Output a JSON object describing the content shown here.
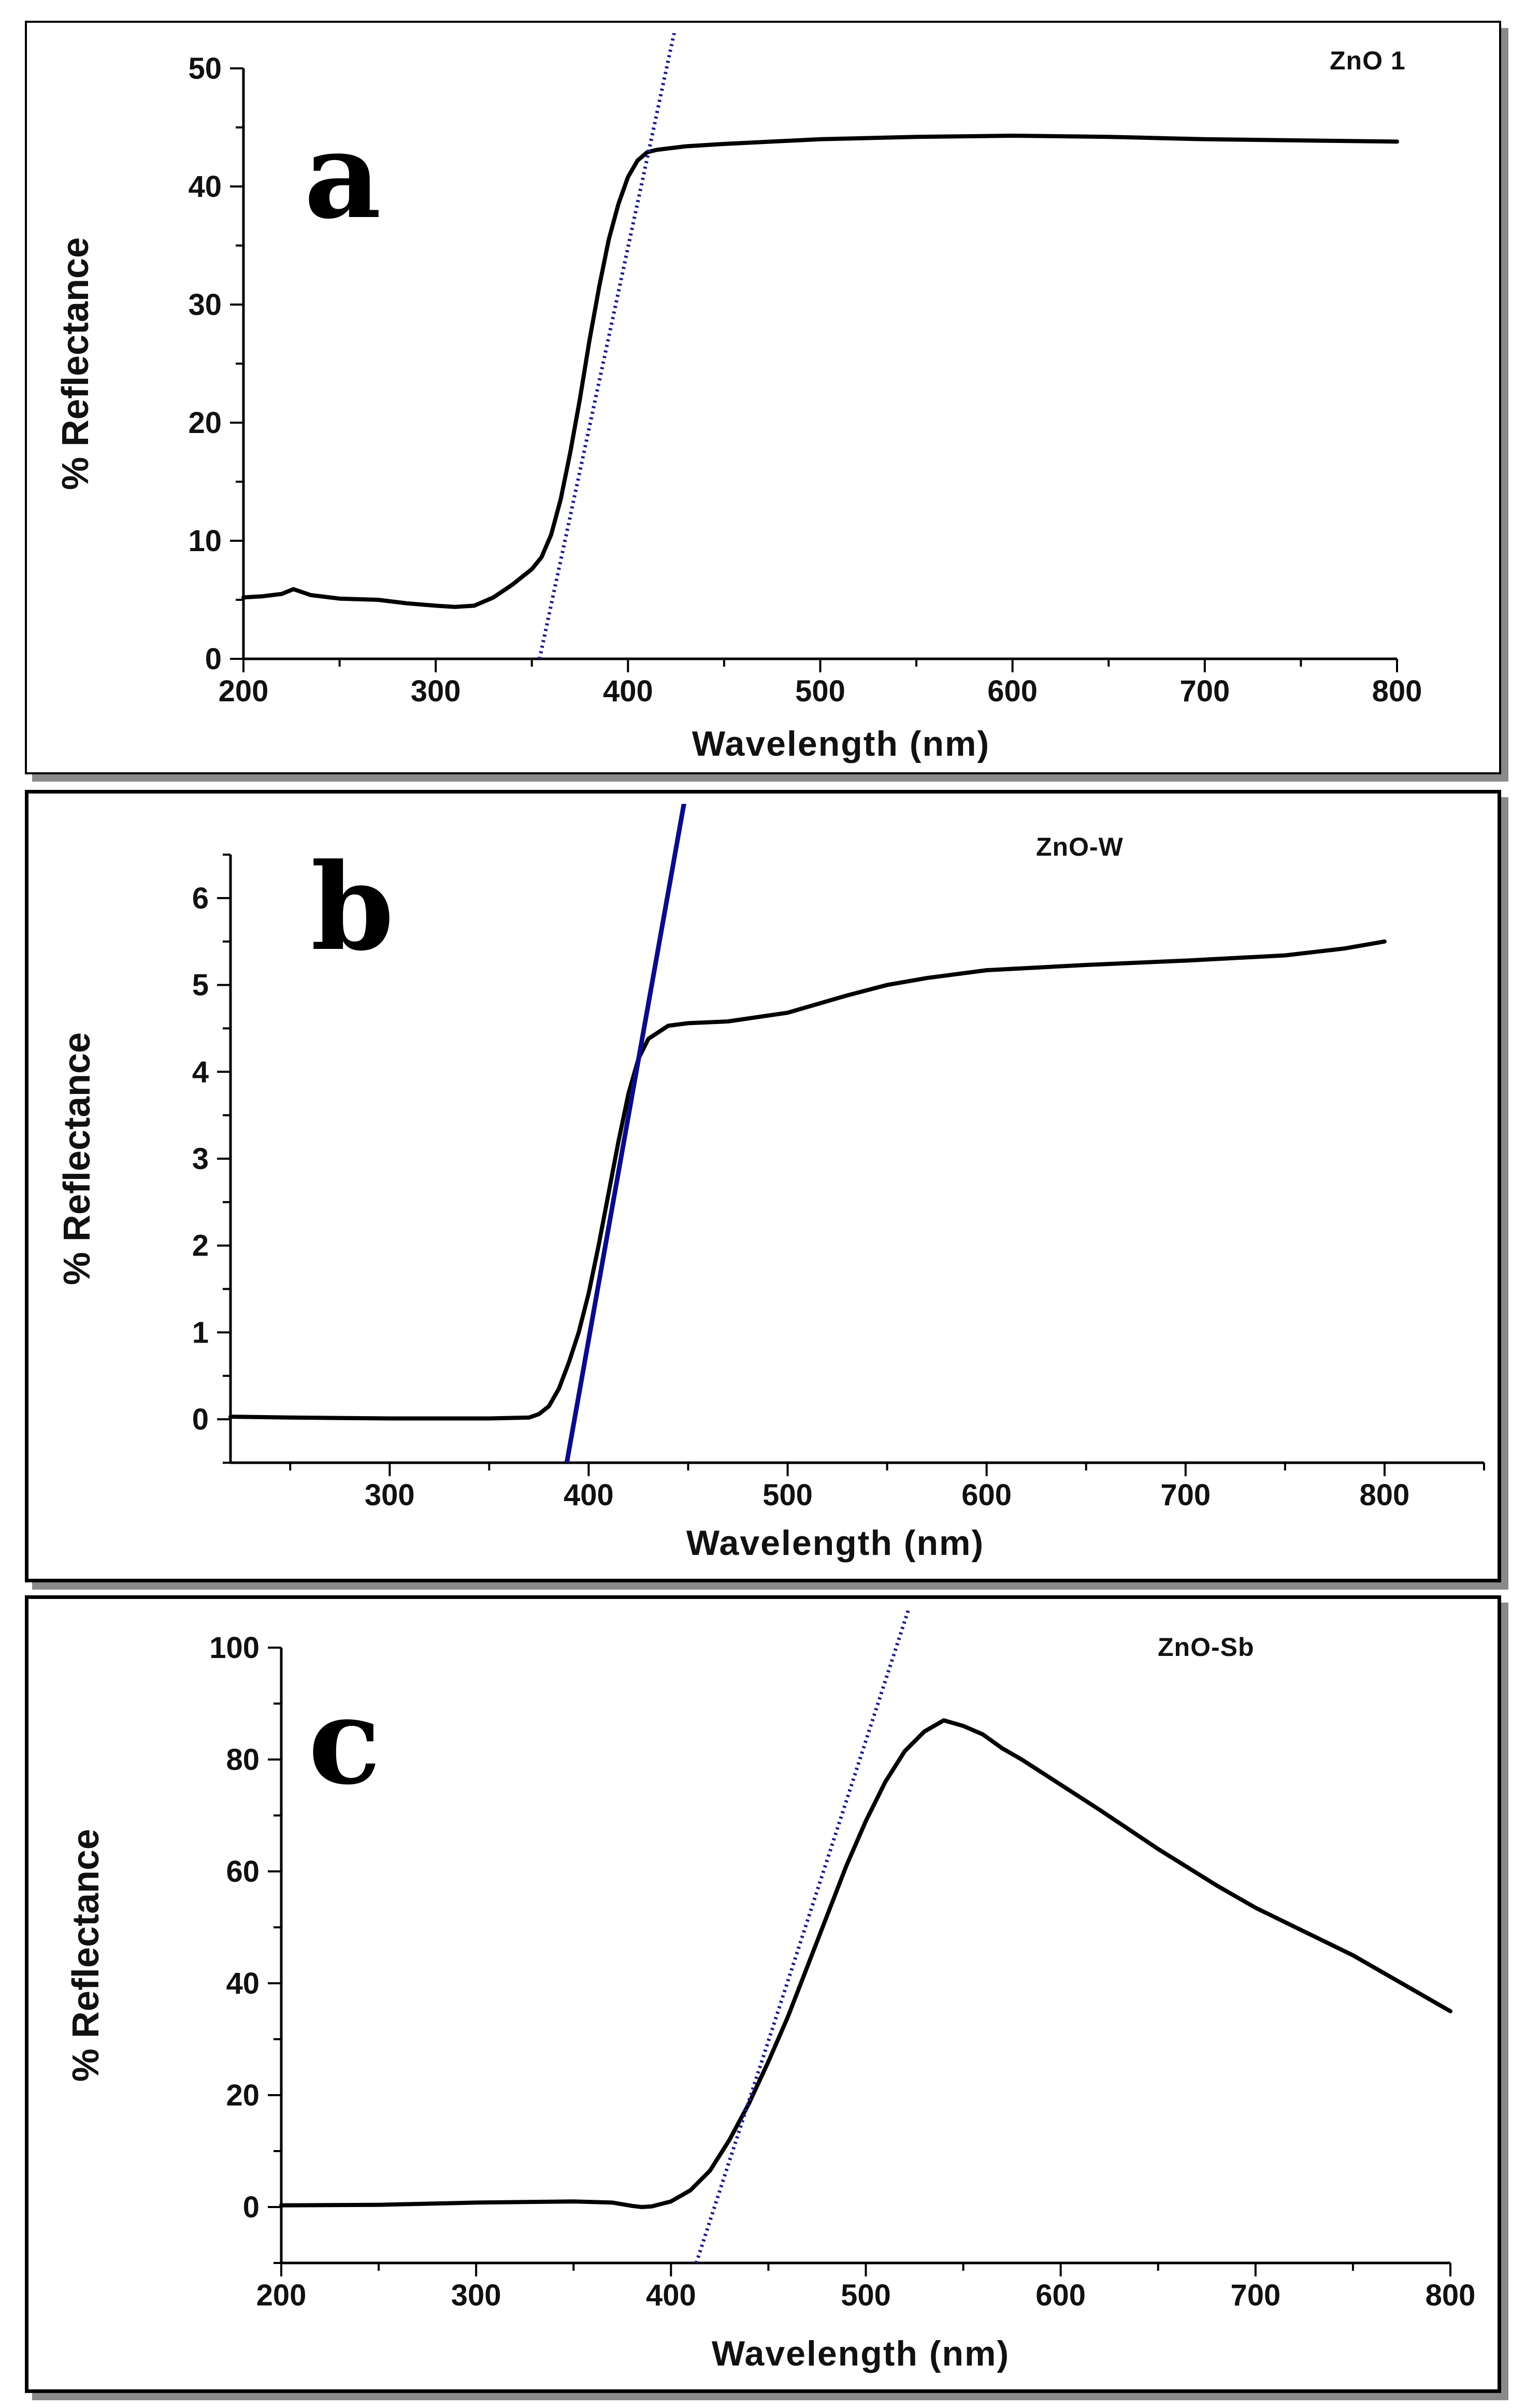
{
  "chart_data": [
    {
      "type": "line",
      "panel_letter": "a",
      "sample_label": "ZnO 1",
      "xlabel": "Wavelength (nm)",
      "ylabel": "% Reflectance",
      "xlim": [
        200,
        800
      ],
      "ylim": [
        0,
        50
      ],
      "x_ticks": [
        200,
        300,
        400,
        500,
        600,
        700,
        800
      ],
      "y_ticks": [
        0,
        10,
        20,
        30,
        40,
        50
      ],
      "colors": {
        "spectrum": "#000000",
        "tangent": "#1a1a8c"
      },
      "series": [
        {
          "name": "spectrum",
          "x": [
            200,
            210,
            220,
            226,
            235,
            250,
            270,
            285,
            300,
            310,
            320,
            330,
            340,
            350,
            355,
            360,
            365,
            370,
            375,
            380,
            385,
            390,
            395,
            400,
            405,
            410,
            415,
            420,
            430,
            450,
            500,
            550,
            600,
            650,
            700,
            750,
            800
          ],
          "y": [
            5.2,
            5.3,
            5.5,
            5.9,
            5.4,
            5.1,
            5.0,
            4.7,
            4.5,
            4.4,
            4.5,
            5.2,
            6.3,
            7.6,
            8.6,
            10.5,
            13.5,
            17.5,
            22.0,
            27.0,
            31.5,
            35.5,
            38.5,
            40.8,
            42.2,
            42.9,
            43.1,
            43.2,
            43.4,
            43.6,
            44.0,
            44.2,
            44.3,
            44.2,
            44.0,
            43.9,
            43.8
          ]
        }
      ],
      "tangent": {
        "style": "dotted",
        "x": [
          354,
          424
        ],
        "y": [
          0,
          53
        ]
      }
    },
    {
      "type": "line",
      "panel_letter": "b",
      "sample_label": "ZnO-W",
      "xlabel": "Wavelength (nm)",
      "ylabel": "% Reflectance",
      "xlim": [
        220,
        850
      ],
      "ylim": [
        -0.5,
        6.5
      ],
      "x_ticks": [
        300,
        400,
        500,
        600,
        700,
        800
      ],
      "y_ticks": [
        0,
        1,
        2,
        3,
        4,
        5,
        6
      ],
      "colors": {
        "spectrum": "#000000",
        "tangent": "#0b0b8a"
      },
      "series": [
        {
          "name": "spectrum",
          "x": [
            220,
            250,
            300,
            350,
            370,
            375,
            380,
            385,
            390,
            395,
            400,
            405,
            410,
            415,
            420,
            425,
            430,
            440,
            450,
            470,
            500,
            530,
            550,
            570,
            600,
            650,
            700,
            750,
            780,
            800
          ],
          "y": [
            0.03,
            0.02,
            0.01,
            0.01,
            0.02,
            0.06,
            0.15,
            0.35,
            0.65,
            1.0,
            1.45,
            2.0,
            2.6,
            3.2,
            3.75,
            4.15,
            4.38,
            4.53,
            4.56,
            4.58,
            4.68,
            4.88,
            5.0,
            5.08,
            5.17,
            5.23,
            5.28,
            5.34,
            5.42,
            5.5
          ]
        }
      ],
      "tangent": {
        "style": "solid",
        "x": [
          389,
          448
        ],
        "y": [
          -0.5,
          7.1
        ]
      }
    },
    {
      "type": "line",
      "panel_letter": "c",
      "sample_label": "ZnO-Sb",
      "xlabel": "Wavelength (nm)",
      "ylabel": "% Reflectance",
      "xlim": [
        200,
        800
      ],
      "ylim": [
        -10,
        100
      ],
      "x_ticks": [
        200,
        300,
        400,
        500,
        600,
        700,
        800
      ],
      "y_ticks": [
        0,
        20,
        40,
        60,
        80,
        100
      ],
      "colors": {
        "spectrum": "#000000",
        "tangent": "#1a1a8c"
      },
      "series": [
        {
          "name": "spectrum",
          "x": [
            200,
            250,
            300,
            350,
            370,
            380,
            385,
            390,
            400,
            410,
            420,
            430,
            440,
            450,
            460,
            470,
            480,
            490,
            500,
            510,
            520,
            530,
            540,
            550,
            560,
            570,
            580,
            600,
            620,
            650,
            680,
            700,
            750,
            800
          ],
          "y": [
            0.3,
            0.4,
            0.8,
            1.0,
            0.8,
            0.2,
            0.0,
            0.1,
            1.0,
            3.0,
            6.5,
            12.0,
            18.5,
            26.0,
            34.0,
            43.0,
            52.0,
            61.0,
            69.0,
            76.0,
            81.5,
            85.0,
            87.0,
            86.0,
            84.5,
            82.0,
            80.0,
            75.5,
            71.0,
            64.0,
            57.5,
            53.5,
            45.0,
            35.0
          ]
        }
      ],
      "tangent": {
        "style": "dotted",
        "x": [
          413,
          523
        ],
        "y": [
          -10,
          108
        ]
      }
    }
  ]
}
